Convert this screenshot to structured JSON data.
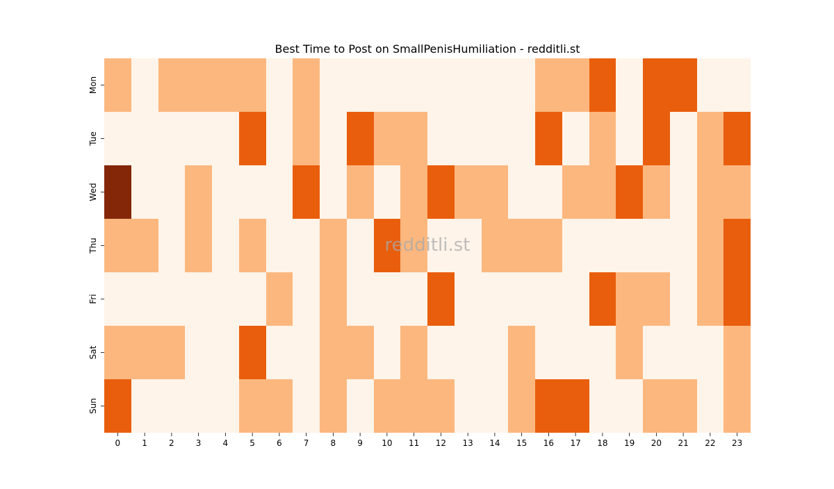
{
  "chart_data": {
    "type": "heatmap",
    "title": "Best Time to Post on SmallPenisHumiliation - redditli.st",
    "watermark": "redditli.st",
    "xlabel": "",
    "ylabel": "",
    "x_tick_labels": [
      "0",
      "1",
      "2",
      "3",
      "4",
      "5",
      "6",
      "7",
      "8",
      "9",
      "10",
      "11",
      "12",
      "13",
      "14",
      "15",
      "16",
      "17",
      "18",
      "19",
      "20",
      "21",
      "22",
      "23"
    ],
    "y_tick_labels": [
      "Mon",
      "Tue",
      "Wed",
      "Thu",
      "Fri",
      "Sat",
      "Sun"
    ],
    "level_colors": [
      "#fef4e9",
      "#fcb77e",
      "#e95e0d",
      "#842709"
    ],
    "grid": false,
    "values": [
      [
        1,
        0,
        1,
        1,
        1,
        1,
        0,
        1,
        0,
        0,
        0,
        0,
        0,
        0,
        0,
        0,
        1,
        1,
        2,
        0,
        2,
        2,
        0,
        0
      ],
      [
        0,
        0,
        0,
        0,
        0,
        2,
        0,
        1,
        0,
        2,
        1,
        1,
        0,
        0,
        0,
        0,
        2,
        0,
        1,
        0,
        2,
        0,
        1,
        2
      ],
      [
        3,
        0,
        0,
        1,
        0,
        0,
        0,
        2,
        0,
        1,
        0,
        1,
        2,
        1,
        1,
        0,
        0,
        1,
        1,
        2,
        1,
        0,
        1,
        1
      ],
      [
        1,
        1,
        0,
        1,
        0,
        1,
        0,
        0,
        1,
        0,
        2,
        1,
        0,
        0,
        1,
        1,
        1,
        0,
        0,
        0,
        0,
        0,
        1,
        2
      ],
      [
        0,
        0,
        0,
        0,
        0,
        0,
        1,
        0,
        1,
        0,
        0,
        0,
        2,
        0,
        0,
        0,
        0,
        0,
        2,
        1,
        1,
        0,
        1,
        2
      ],
      [
        1,
        1,
        1,
        0,
        0,
        2,
        0,
        0,
        1,
        1,
        0,
        1,
        0,
        0,
        0,
        1,
        0,
        0,
        0,
        1,
        0,
        0,
        0,
        1
      ],
      [
        2,
        0,
        0,
        0,
        0,
        1,
        1,
        0,
        1,
        0,
        1,
        1,
        1,
        0,
        0,
        1,
        2,
        2,
        0,
        0,
        1,
        1,
        0,
        1
      ]
    ]
  }
}
